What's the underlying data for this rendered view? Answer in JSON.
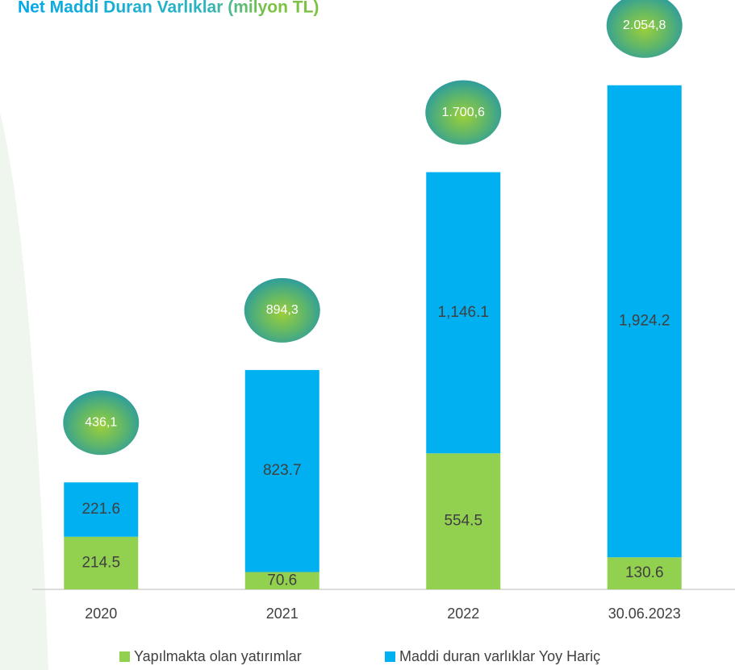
{
  "chart_data": {
    "type": "stacked_bar",
    "title": "Net Maddi Duran Varlıklar (milyon TL)",
    "categories": [
      "2020",
      "2021",
      "2022",
      "30.06.2023"
    ],
    "series": [
      {
        "name": "Yapılmakta olan yatırımlar",
        "color": "#92d050",
        "values": [
          214.5,
          70.6,
          554.5,
          130.6
        ],
        "value_labels": [
          "214.5",
          "70.6",
          "554.5",
          "130.6"
        ]
      },
      {
        "name": "Maddi duran varlıklar Yoy Hariç",
        "color": "#00b0f0",
        "values": [
          221.6,
          823.7,
          1146.1,
          1924.2
        ],
        "value_labels": [
          "221.6",
          "823.7",
          "1,146.1",
          "1,924.2"
        ]
      }
    ],
    "totals": [
      436.1,
      894.3,
      1700.6,
      2054.8
    ],
    "total_labels": [
      "436,1",
      "894,3",
      "1.700,6",
      "2.054,8"
    ],
    "ylim": [
      0,
      2100
    ]
  }
}
